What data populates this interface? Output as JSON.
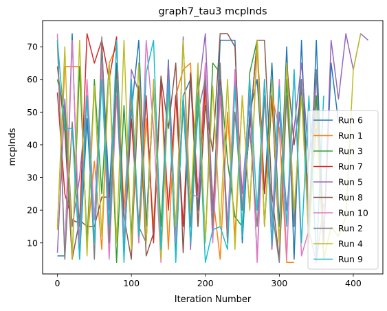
{
  "chart_data": {
    "type": "line",
    "title": "graph7_tau3 mcpInds",
    "xlabel": "Iteration Number",
    "ylabel": "mcpInds",
    "xlim": [
      -20,
      440
    ],
    "ylim": [
      0.5,
      78
    ],
    "xticks": [
      0,
      100,
      200,
      300,
      400
    ],
    "yticks": [
      10,
      20,
      30,
      40,
      50,
      60,
      70
    ],
    "grid": false,
    "legend_position": "lower-right",
    "series": [
      {
        "name": "Run 6",
        "color": "#1f77b4",
        "x": [
          0,
          10,
          20,
          30,
          40,
          50,
          60,
          70,
          80,
          90,
          100,
          110,
          120,
          130,
          140,
          150,
          160,
          170,
          180,
          190,
          200,
          210,
          220,
          230,
          240,
          250,
          260,
          270,
          280,
          290,
          300,
          310,
          320,
          330,
          340,
          350,
          360,
          370,
          380
        ],
        "y": [
          6,
          6,
          74,
          5,
          48,
          10,
          70,
          25,
          65,
          8,
          50,
          72,
          15,
          58,
          6,
          66,
          12,
          55,
          60,
          20,
          62,
          15,
          72,
          72,
          72,
          10,
          50,
          60,
          25,
          65,
          15,
          70,
          5,
          72,
          15,
          72,
          10,
          65,
          47
        ]
      },
      {
        "name": "Run 1",
        "color": "#ff7f0e",
        "x": [
          0,
          10,
          20,
          30,
          40,
          50,
          60,
          70,
          80,
          90,
          100,
          110,
          120,
          130,
          140,
          150,
          160,
          170,
          180,
          190,
          200,
          210,
          220,
          230,
          240,
          250,
          260,
          270,
          280,
          290,
          300,
          310,
          320
        ],
        "y": [
          15,
          64,
          64,
          64,
          10,
          35,
          8,
          65,
          70,
          20,
          55,
          10,
          48,
          15,
          60,
          8,
          55,
          63,
          65,
          15,
          55,
          25,
          5,
          50,
          12,
          55,
          20,
          70,
          15,
          55,
          45,
          4,
          4
        ]
      },
      {
        "name": "Run 3",
        "color": "#2ca02c",
        "x": [
          0,
          10,
          20,
          30,
          40,
          50,
          60,
          70,
          80,
          90,
          100,
          110,
          120,
          130,
          140,
          150,
          160,
          170,
          180,
          190,
          200,
          210,
          220,
          230,
          240,
          250,
          260,
          270,
          280,
          290,
          300,
          310,
          320,
          330,
          340,
          350,
          360
        ],
        "y": [
          60,
          50,
          5,
          64,
          10,
          60,
          25,
          65,
          4,
          52,
          12,
          65,
          10,
          58,
          15,
          60,
          8,
          52,
          15,
          62,
          10,
          65,
          62,
          35,
          18,
          15,
          62,
          72,
          15,
          55,
          10,
          60,
          15,
          60,
          20,
          55,
          5
        ]
      },
      {
        "name": "Run 7",
        "color": "#d62728",
        "x": [
          0,
          10,
          20,
          30,
          40,
          50,
          60,
          70,
          80,
          90,
          100,
          110,
          120,
          130,
          140,
          150,
          160,
          170,
          180,
          190,
          200,
          210,
          220,
          230,
          240,
          250,
          260,
          270,
          280,
          290,
          300
        ],
        "y": [
          56,
          25,
          17,
          16,
          74,
          65,
          72,
          60,
          73,
          8,
          48,
          15,
          55,
          10,
          60,
          20,
          55,
          15,
          62,
          25,
          58,
          12,
          60,
          10,
          58,
          20,
          45,
          72,
          25,
          55,
          10
        ]
      },
      {
        "name": "Run 5",
        "color": "#9467bd",
        "x": [
          0,
          10,
          20,
          30,
          40,
          50,
          60,
          70,
          80,
          90,
          100,
          110,
          120,
          130,
          140,
          150,
          160,
          170,
          180,
          190,
          200,
          210,
          220,
          230,
          240,
          250,
          260,
          270,
          280,
          290,
          300,
          310,
          320,
          330,
          340,
          350,
          360,
          370,
          380,
          390,
          400,
          410,
          420
        ],
        "y": [
          7,
          54,
          15,
          30,
          55,
          17,
          65,
          20,
          63,
          10,
          63,
          56,
          10,
          60,
          8,
          65,
          12,
          73,
          8,
          55,
          74,
          20,
          58,
          15,
          60,
          25,
          55,
          5,
          60,
          8,
          50,
          20,
          45,
          65,
          35,
          62,
          10,
          72,
          54,
          74,
          63,
          74,
          72
        ]
      },
      {
        "name": "Run 8",
        "color": "#8c564b",
        "x": [
          0,
          10,
          20,
          30,
          40,
          50,
          60,
          70,
          80,
          90,
          100,
          110,
          120,
          130,
          140,
          150,
          160,
          170,
          180,
          190,
          200,
          210,
          220,
          230,
          240,
          250,
          260,
          270,
          280,
          290,
          300,
          310,
          320,
          330,
          340,
          350
        ],
        "y": [
          64,
          44,
          5,
          17,
          15,
          15,
          24,
          24,
          63,
          18,
          5,
          58,
          6,
          13,
          61,
          45,
          65,
          7,
          62,
          15,
          52,
          38,
          74,
          74,
          70,
          20,
          45,
          72,
          72,
          25,
          5,
          65,
          40,
          57,
          20,
          45
        ]
      },
      {
        "name": "Run 10",
        "color": "#e377c2",
        "x": [
          0,
          10,
          20,
          30,
          40,
          50,
          60,
          70,
          80,
          90,
          100,
          110,
          120,
          130,
          140,
          150,
          160,
          170,
          180,
          190,
          200,
          210,
          220,
          230,
          240,
          250,
          260,
          270,
          280,
          290,
          300,
          310,
          320,
          330,
          340,
          350,
          360
        ],
        "y": [
          74,
          5,
          72,
          10,
          60,
          17,
          65,
          5,
          55,
          10,
          60,
          10,
          72,
          45,
          4,
          60,
          10,
          55,
          25,
          24,
          65,
          10,
          55,
          12,
          63,
          20,
          60,
          4,
          55,
          15,
          60,
          5,
          63,
          6,
          14,
          4,
          22
        ]
      },
      {
        "name": "Run 2",
        "color": "#7f7f7f",
        "x": [
          0,
          10,
          20,
          30,
          40,
          50,
          60,
          70,
          80,
          90,
          100,
          110,
          120,
          130,
          140,
          150,
          160,
          170,
          180,
          190,
          200,
          210,
          220,
          230,
          240,
          250,
          260,
          270,
          280,
          290,
          300,
          310,
          320,
          330,
          340,
          350,
          360
        ],
        "y": [
          72,
          5,
          47,
          15,
          55,
          5,
          73,
          10,
          60,
          6,
          58,
          15,
          10,
          58,
          10,
          58,
          5,
          55,
          15,
          50,
          60,
          15,
          65,
          10,
          50,
          20,
          45,
          15,
          55,
          20,
          4,
          55,
          15,
          60,
          10,
          63,
          10
        ]
      },
      {
        "name": "Run 4",
        "color": "#bcbd22",
        "x": [
          0,
          10,
          20,
          30,
          40,
          50,
          60,
          70,
          80,
          90,
          100,
          110,
          120,
          130,
          140,
          150,
          160,
          170,
          180,
          190,
          200,
          210,
          220,
          230,
          240,
          250,
          260,
          270,
          280,
          290,
          300,
          310,
          320,
          330,
          340,
          350,
          360,
          370,
          380,
          390,
          400,
          410
        ],
        "y": [
          14,
          70,
          5,
          72,
          6,
          58,
          12,
          65,
          10,
          72,
          8,
          65,
          10,
          60,
          5,
          55,
          15,
          72,
          20,
          65,
          10,
          58,
          15,
          60,
          8,
          55,
          20,
          72,
          15,
          60,
          10,
          65,
          20,
          55,
          10,
          50,
          5,
          15,
          12,
          18,
          63,
          74
        ]
      },
      {
        "name": "Run 9",
        "color": "#17becf",
        "x": [
          0,
          10,
          20,
          30,
          40,
          50,
          60,
          70,
          80,
          90,
          100,
          110,
          120,
          130,
          140,
          150,
          160,
          170,
          180,
          190,
          200,
          210,
          220,
          230,
          240,
          250,
          260,
          270,
          280,
          290,
          300,
          310,
          320,
          330,
          340,
          350,
          360
        ],
        "y": [
          72,
          45,
          45,
          5,
          55,
          10,
          60,
          15,
          72,
          4,
          60,
          12,
          62,
          72,
          8,
          60,
          4,
          55,
          10,
          55,
          4,
          14,
          15,
          8,
          58,
          12,
          60,
          20,
          60,
          10,
          58,
          15,
          63,
          10,
          55,
          5,
          55
        ]
      }
    ]
  }
}
